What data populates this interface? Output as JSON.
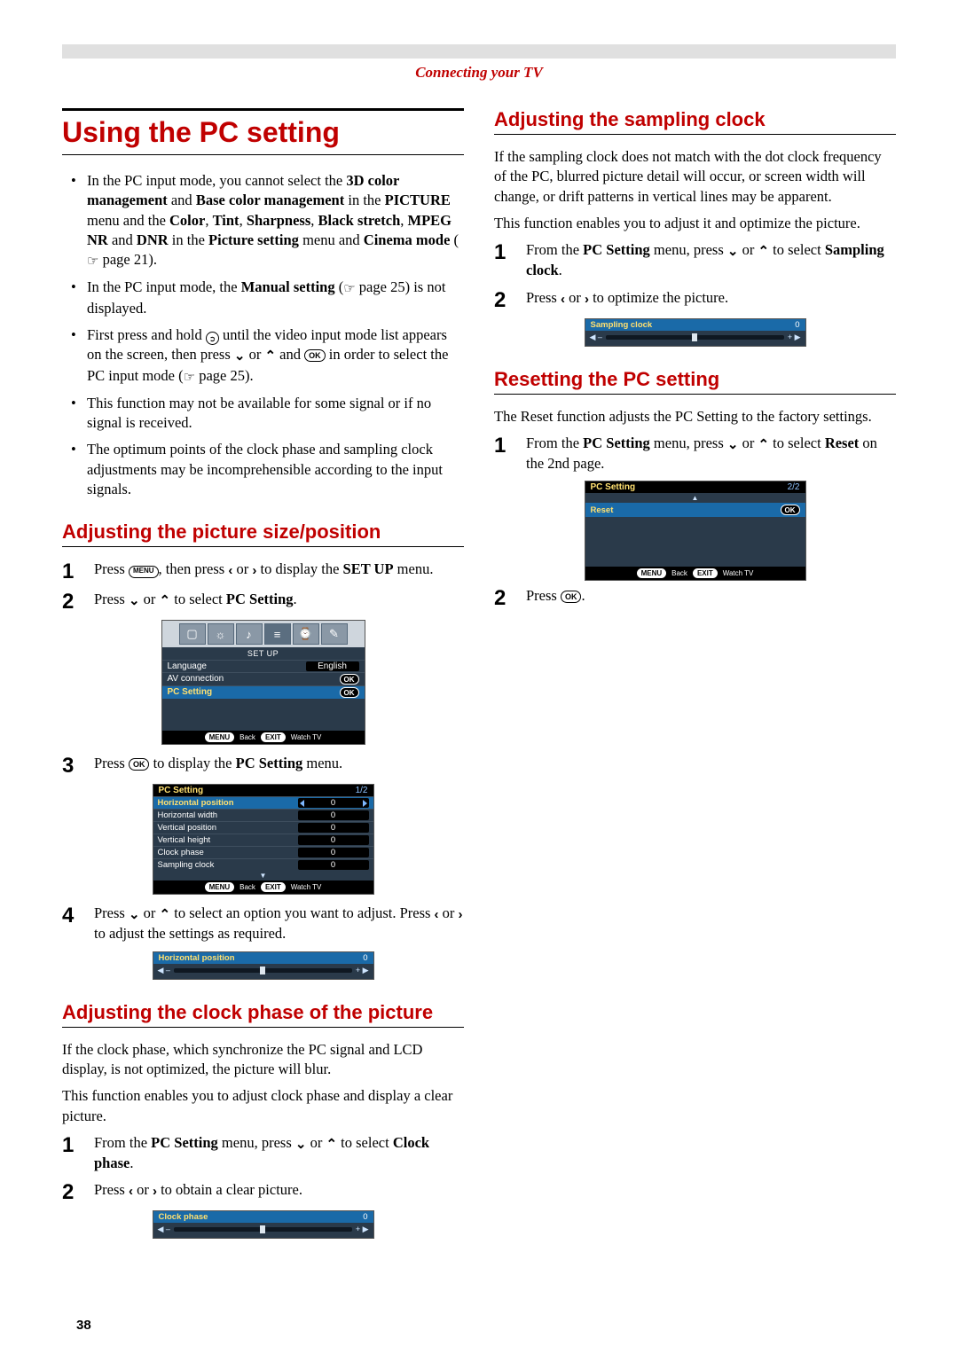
{
  "header": {
    "section_title": "Connecting your TV"
  },
  "page_number": "38",
  "main_title": "Using the PC setting",
  "bullets": [
    {
      "pre": "In the PC input mode, you cannot select the ",
      "b1": "3D color management",
      "mid1": " and ",
      "b2": "Base color management",
      "mid2": " in the ",
      "b3": "PICTURE",
      "mid3": " menu and the ",
      "b4": "Color",
      "c1": ", ",
      "b5": "Tint",
      "c2": ", ",
      "b6": "Sharpness",
      "c3": ", ",
      "b7": "Black stretch",
      "c4": ", ",
      "b8": "MPEG NR",
      "mid4": " and ",
      "b9": "DNR",
      "mid5": " in the ",
      "b10": "Picture setting",
      "mid6": " menu and ",
      "b11": "Cinema mode",
      "post": " (",
      "pageref": " page 21).",
      "has_pointer": true
    },
    {
      "pre": "In the PC input mode, the ",
      "b1": "Manual setting",
      "post": " (",
      "pageref": " page 25) is not displayed.",
      "has_pointer": true
    },
    {
      "text": "First press and hold ",
      "post": " until the video input mode list appears on the screen, then press ",
      "post2": " or ",
      "post3": " and ",
      "post4": " in order to select the PC input mode (",
      "pageref": " page 25).",
      "has_input_icon": true
    },
    {
      "text": "This function may not be available for some signal or if no signal is received."
    },
    {
      "text": "The optimum points of the clock phase and sampling clock adjustments may be incomprehensible according to the input signals."
    }
  ],
  "sub1": {
    "title": "Adjusting the picture size/position",
    "step1": {
      "n": "1",
      "t1": "Press ",
      "t2": ", then press ",
      "t3": " or ",
      "t4": " to display the ",
      "b": "SET UP",
      "t5": " menu."
    },
    "step2": {
      "n": "2",
      "t1": "Press ",
      "t2": " or ",
      "t3": " to select ",
      "b": "PC Setting",
      "t4": "."
    },
    "step3": {
      "n": "3",
      "t1": "Press ",
      "t2": " to display the ",
      "b": "PC Setting",
      "t3": " menu."
    },
    "step4": {
      "n": "4",
      "t1": "Press ",
      "t2": " or ",
      "t3": " to select an option you want to adjust. Press ",
      "t4": " or ",
      "t5": " to adjust the settings as required."
    }
  },
  "setup_menu": {
    "label": "SET UP",
    "rows": [
      {
        "lbl": "Language",
        "val": "English"
      },
      {
        "lbl": "AV connection",
        "ok": true
      },
      {
        "lbl": "PC Setting",
        "ok": true,
        "hl": true
      }
    ],
    "menu_back": "Back",
    "exit_watch": "Watch TV"
  },
  "pcset_menu": {
    "title": "PC Setting",
    "page": "1/2",
    "rows": [
      {
        "lbl": "Horizontal position",
        "val": "0",
        "hl": true,
        "arrows": true
      },
      {
        "lbl": "Horizontal width",
        "val": "0"
      },
      {
        "lbl": "Vertical position",
        "val": "0"
      },
      {
        "lbl": "Vertical height",
        "val": "0"
      },
      {
        "lbl": "Clock phase",
        "val": "0"
      },
      {
        "lbl": "Sampling clock",
        "val": "0"
      }
    ],
    "menu_back": "Back",
    "exit_watch": "Watch TV"
  },
  "hpos_slider": {
    "lbl": "Horizontal position",
    "val": "0"
  },
  "sub2": {
    "title": "Adjusting the clock phase of the picture",
    "p1": "If the clock phase, which synchronize the PC signal and LCD display, is not optimized, the picture will blur.",
    "p2": "This function enables you to adjust clock phase and display a clear picture.",
    "step1": {
      "n": "1",
      "t1": "From the ",
      "b1": "PC Setting",
      "t2": " menu, press ",
      "t3": " or ",
      "t4": " to select ",
      "b2": "Clock phase",
      "t5": "."
    },
    "step2": {
      "n": "2",
      "t1": "Press ",
      "t2": " or ",
      "t3": " to obtain a clear picture."
    }
  },
  "clock_slider": {
    "lbl": "Clock phase",
    "val": "0"
  },
  "sub3": {
    "title": "Adjusting the sampling clock",
    "p1": "If the sampling clock does not match with the dot clock frequency of the PC, blurred picture detail will occur, or screen width will change, or drift patterns in vertical lines may be apparent.",
    "p2": "This function enables you to adjust it and optimize the picture.",
    "step1": {
      "n": "1",
      "t1": "From the ",
      "b1": "PC Setting",
      "t2": " menu, press ",
      "t3": " or ",
      "t4": " to select ",
      "b2": "Sampling clock",
      "t5": "."
    },
    "step2": {
      "n": "2",
      "t1": "Press ",
      "t2": " or ",
      "t3": " to optimize the picture."
    }
  },
  "samp_slider": {
    "lbl": "Sampling clock",
    "val": "0"
  },
  "sub4": {
    "title": "Resetting the PC setting",
    "p1": "The Reset function adjusts the PC Setting to the factory settings.",
    "step1": {
      "n": "1",
      "t1": "From the ",
      "b1": "PC Setting",
      "t2": " menu, press ",
      "t3": " or ",
      "t4": " to select ",
      "b2": "Reset",
      "t5": " on the 2nd page."
    },
    "step2": {
      "n": "2",
      "t1": "Press ",
      "t2": "."
    }
  },
  "reset_menu": {
    "title": "PC Setting",
    "page": "2/2",
    "row_lbl": "Reset",
    "menu_back": "Back",
    "exit_watch": "Watch TV"
  },
  "glyphs": {
    "down": "⌄",
    "up": "⌃",
    "left": "‹",
    "right": "›",
    "menu": "MENU",
    "exit": "EXIT",
    "ok": "OK"
  }
}
